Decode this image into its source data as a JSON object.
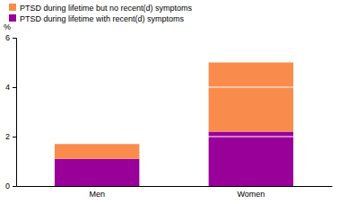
{
  "chart_data": {
    "type": "bar",
    "stacked": true,
    "categories": [
      "Men",
      "Women"
    ],
    "y_label": "%",
    "series": [
      {
        "name": "PTSD during lifetime with recent(d) symptoms",
        "color": "#990099",
        "values": [
          1.1,
          2.2
        ]
      },
      {
        "name": "PTSD during lifetime but no recent(d) symptoms",
        "color": "#f98c4c",
        "values": [
          0.6,
          2.8
        ]
      }
    ],
    "ylim": [
      0,
      6
    ],
    "yticks": [
      0,
      2,
      4,
      6
    ],
    "grid": true,
    "legend": "top-left"
  }
}
